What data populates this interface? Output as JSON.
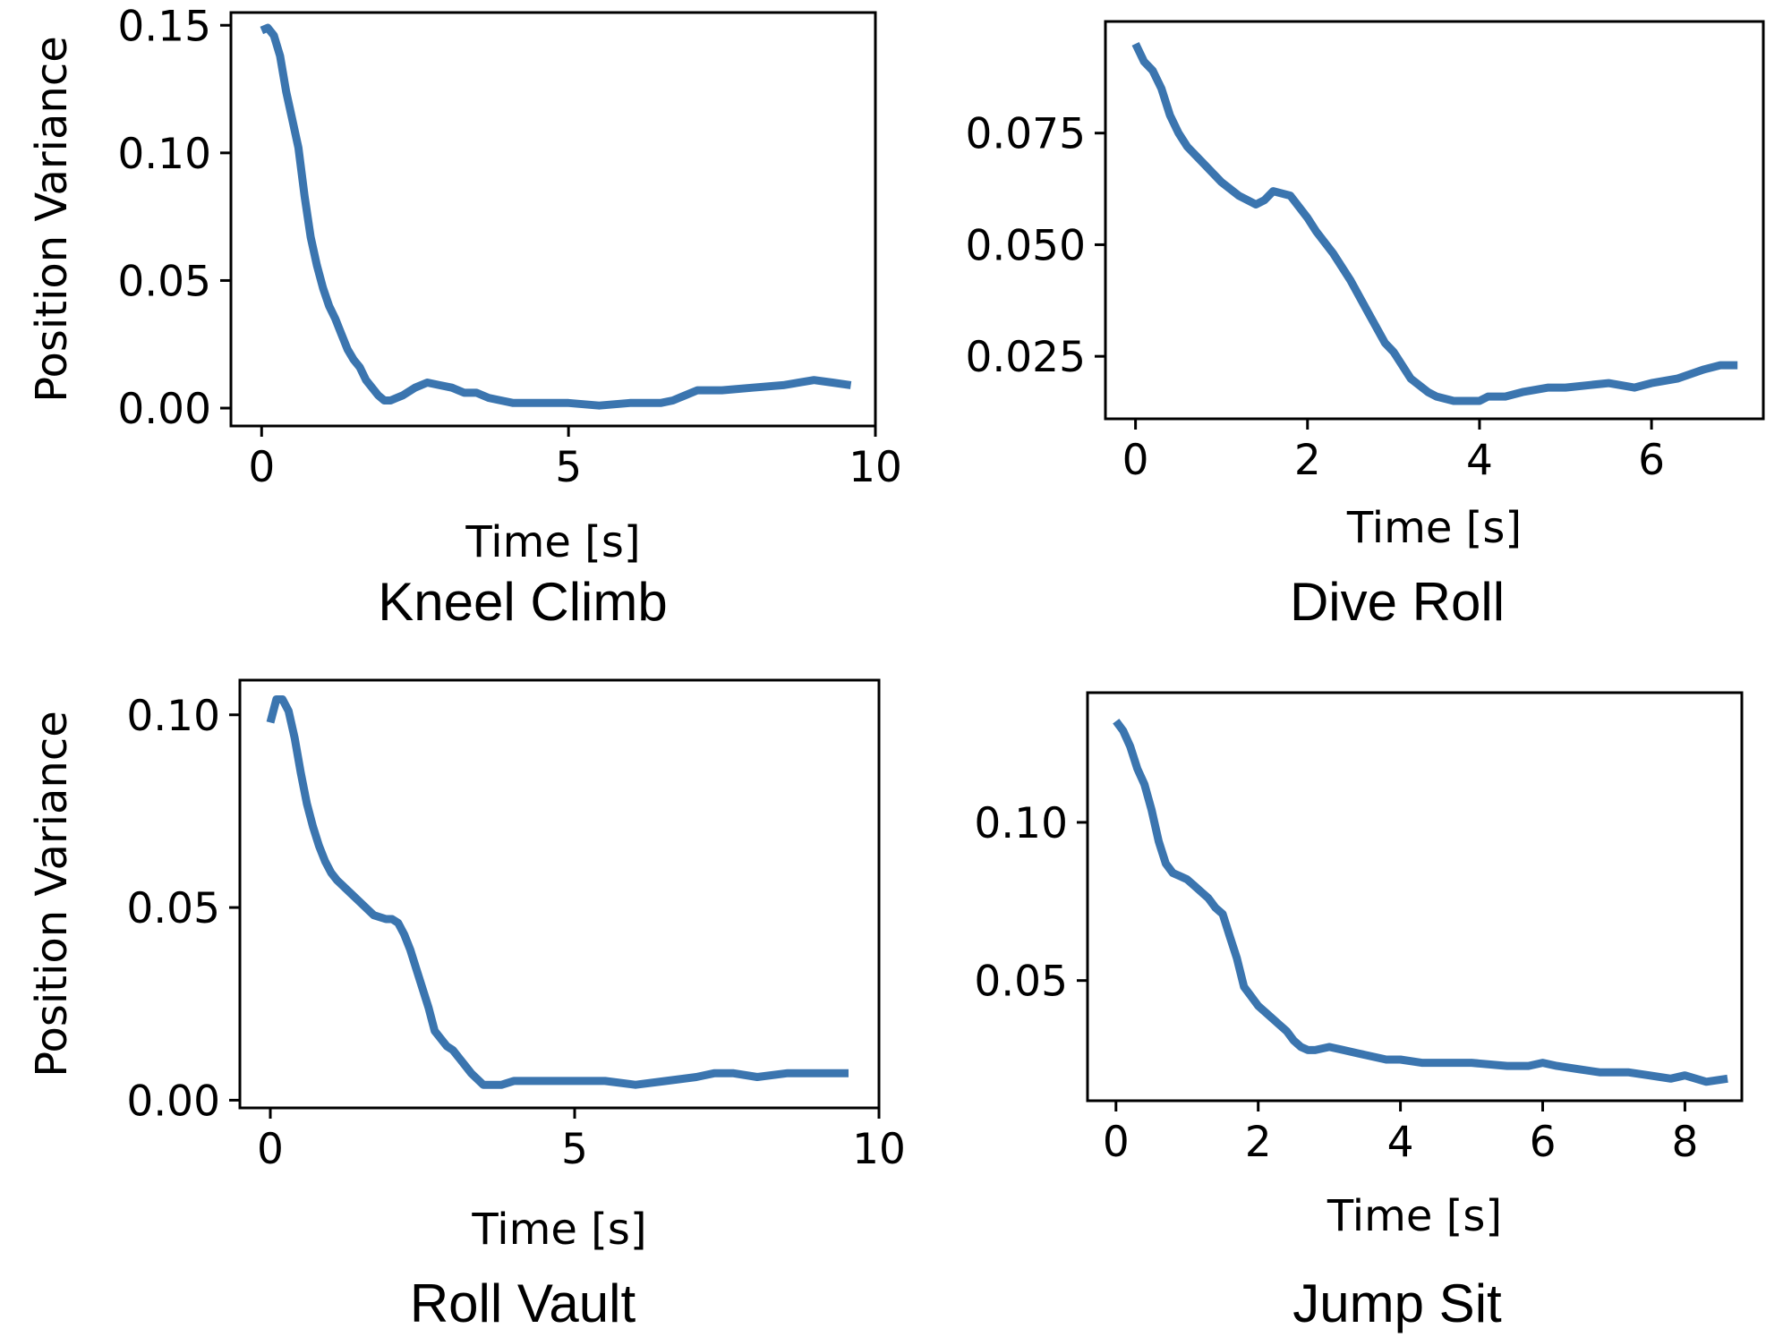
{
  "colors": {
    "line": "#3b75af",
    "axes": "#000000",
    "background": "#ffffff"
  },
  "chart_data": [
    {
      "type": "line",
      "title": "Kneel Climb",
      "xlabel": "Time [s]",
      "ylabel": "Position Variance",
      "xlim": [
        -0.5,
        10.0
      ],
      "ylim": [
        -0.007,
        0.155
      ],
      "xticks": [
        0,
        5,
        10
      ],
      "xtick_labels": [
        "0",
        "5",
        "10"
      ],
      "yticks": [
        0.0,
        0.05,
        0.1,
        0.15
      ],
      "ytick_labels": [
        "0.00",
        "0.05",
        "0.10",
        "0.15"
      ],
      "series": [
        {
          "name": "Kneel Climb",
          "x": [
            0.0,
            0.1,
            0.2,
            0.3,
            0.4,
            0.5,
            0.6,
            0.7,
            0.8,
            0.9,
            1.0,
            1.1,
            1.2,
            1.3,
            1.4,
            1.5,
            1.6,
            1.7,
            1.8,
            1.9,
            2.0,
            2.1,
            2.2,
            2.3,
            2.5,
            2.7,
            2.9,
            3.1,
            3.3,
            3.5,
            3.7,
            3.9,
            4.1,
            4.3,
            4.5,
            5.0,
            5.5,
            6.0,
            6.5,
            6.7,
            6.9,
            7.1,
            7.5,
            8.0,
            8.5,
            9.0,
            9.3,
            9.6
          ],
          "y": [
            0.148,
            0.149,
            0.146,
            0.138,
            0.124,
            0.113,
            0.102,
            0.083,
            0.067,
            0.056,
            0.047,
            0.04,
            0.035,
            0.029,
            0.023,
            0.019,
            0.016,
            0.011,
            0.008,
            0.005,
            0.003,
            0.003,
            0.004,
            0.005,
            0.008,
            0.01,
            0.009,
            0.008,
            0.006,
            0.006,
            0.004,
            0.003,
            0.002,
            0.002,
            0.002,
            0.002,
            0.001,
            0.002,
            0.002,
            0.003,
            0.005,
            0.007,
            0.007,
            0.008,
            0.009,
            0.011,
            0.01,
            0.009
          ]
        }
      ]
    },
    {
      "type": "line",
      "title": "Dive Roll",
      "xlabel": "Time [s]",
      "ylabel": "",
      "xlim": [
        -0.35,
        7.3
      ],
      "ylim": [
        0.011,
        0.1
      ],
      "xticks": [
        0,
        2,
        4,
        6
      ],
      "xtick_labels": [
        "0",
        "2",
        "4",
        "6"
      ],
      "yticks": [
        0.025,
        0.05,
        0.075
      ],
      "ytick_labels": [
        "0.025",
        "0.050",
        "0.075"
      ],
      "series": [
        {
          "name": "Dive Roll",
          "x": [
            0.0,
            0.1,
            0.2,
            0.3,
            0.4,
            0.5,
            0.6,
            0.8,
            1.0,
            1.2,
            1.4,
            1.5,
            1.6,
            1.8,
            2.0,
            2.1,
            2.3,
            2.5,
            2.7,
            2.9,
            3.0,
            3.2,
            3.4,
            3.5,
            3.7,
            3.9,
            4.0,
            4.1,
            4.3,
            4.5,
            4.8,
            5.0,
            5.5,
            5.8,
            6.0,
            6.3,
            6.6,
            6.8,
            7.0
          ],
          "y": [
            0.095,
            0.091,
            0.089,
            0.085,
            0.079,
            0.075,
            0.072,
            0.068,
            0.064,
            0.061,
            0.059,
            0.06,
            0.062,
            0.061,
            0.056,
            0.053,
            0.048,
            0.042,
            0.035,
            0.028,
            0.026,
            0.02,
            0.017,
            0.016,
            0.015,
            0.015,
            0.015,
            0.016,
            0.016,
            0.017,
            0.018,
            0.018,
            0.019,
            0.018,
            0.019,
            0.02,
            0.022,
            0.023,
            0.023
          ]
        }
      ]
    },
    {
      "type": "line",
      "title": "Roll Vault",
      "xlabel": "Time [s]",
      "ylabel": "Position Variance",
      "xlim": [
        -0.5,
        10.0
      ],
      "ylim": [
        -0.002,
        0.109
      ],
      "xticks": [
        0,
        5,
        10
      ],
      "xtick_labels": [
        "0",
        "5",
        "10"
      ],
      "yticks": [
        0.0,
        0.05,
        0.1
      ],
      "ytick_labels": [
        "0.00",
        "0.05",
        "0.10"
      ],
      "series": [
        {
          "name": "Roll Vault",
          "x": [
            0.0,
            0.1,
            0.2,
            0.3,
            0.4,
            0.5,
            0.6,
            0.7,
            0.8,
            0.9,
            1.0,
            1.1,
            1.3,
            1.5,
            1.7,
            1.9,
            2.0,
            2.1,
            2.2,
            2.3,
            2.4,
            2.5,
            2.6,
            2.7,
            2.8,
            2.9,
            3.0,
            3.1,
            3.3,
            3.5,
            3.6,
            3.8,
            4.0,
            4.5,
            5.0,
            5.5,
            6.0,
            6.5,
            7.0,
            7.3,
            7.6,
            8.0,
            8.5,
            9.0,
            9.5
          ],
          "y": [
            0.098,
            0.104,
            0.104,
            0.101,
            0.094,
            0.085,
            0.077,
            0.071,
            0.066,
            0.062,
            0.059,
            0.057,
            0.054,
            0.051,
            0.048,
            0.047,
            0.047,
            0.046,
            0.043,
            0.039,
            0.034,
            0.029,
            0.024,
            0.018,
            0.016,
            0.014,
            0.013,
            0.011,
            0.007,
            0.004,
            0.004,
            0.004,
            0.005,
            0.005,
            0.005,
            0.005,
            0.004,
            0.005,
            0.006,
            0.007,
            0.007,
            0.006,
            0.007,
            0.007,
            0.007
          ]
        }
      ]
    },
    {
      "type": "line",
      "title": "Jump Sit",
      "xlabel": "Time [s]",
      "ylabel": "",
      "xlim": [
        -0.4,
        8.8
      ],
      "ylim": [
        0.012,
        0.141
      ],
      "xticks": [
        0,
        2,
        4,
        6,
        8
      ],
      "xtick_labels": [
        "0",
        "2",
        "4",
        "6",
        "8"
      ],
      "yticks": [
        0.05,
        0.1
      ],
      "ytick_labels": [
        "0.05",
        "0.10"
      ],
      "series": [
        {
          "name": "Jump Sit",
          "x": [
            0.0,
            0.1,
            0.2,
            0.3,
            0.4,
            0.5,
            0.6,
            0.7,
            0.8,
            0.9,
            1.0,
            1.1,
            1.2,
            1.3,
            1.4,
            1.5,
            1.6,
            1.7,
            1.8,
            1.9,
            2.0,
            2.1,
            2.2,
            2.3,
            2.4,
            2.5,
            2.6,
            2.7,
            2.8,
            3.0,
            3.2,
            3.4,
            3.6,
            3.8,
            4.0,
            4.3,
            4.6,
            5.0,
            5.5,
            5.8,
            6.0,
            6.2,
            6.5,
            6.8,
            7.2,
            7.5,
            7.8,
            8.0,
            8.3,
            8.6
          ],
          "y": [
            0.132,
            0.129,
            0.124,
            0.117,
            0.112,
            0.104,
            0.094,
            0.087,
            0.084,
            0.083,
            0.082,
            0.08,
            0.078,
            0.076,
            0.073,
            0.071,
            0.064,
            0.057,
            0.048,
            0.045,
            0.042,
            0.04,
            0.038,
            0.036,
            0.034,
            0.031,
            0.029,
            0.028,
            0.028,
            0.029,
            0.028,
            0.027,
            0.026,
            0.025,
            0.025,
            0.024,
            0.024,
            0.024,
            0.023,
            0.023,
            0.024,
            0.023,
            0.022,
            0.021,
            0.021,
            0.02,
            0.019,
            0.02,
            0.018,
            0.019
          ]
        }
      ]
    }
  ]
}
